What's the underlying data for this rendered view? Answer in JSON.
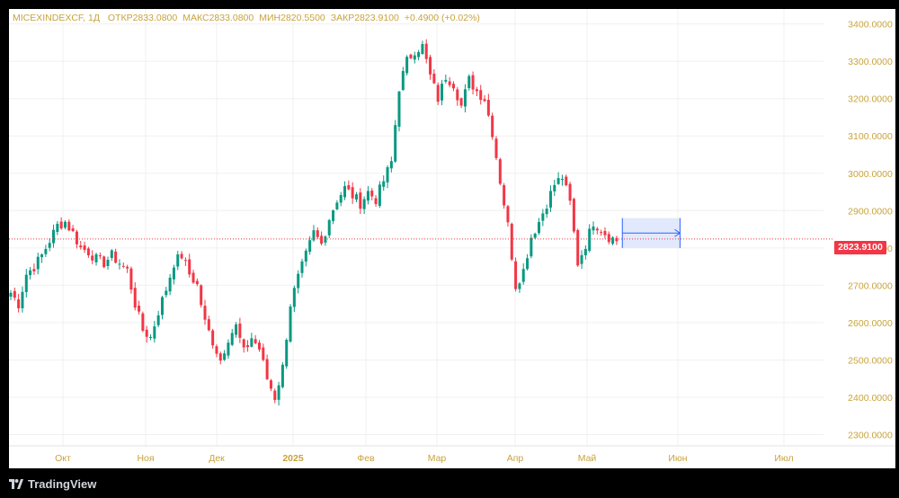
{
  "legend": {
    "symbol": "MICEXINDEXCF, 1Д",
    "open_label": "ОТКР",
    "open": "2833.0800",
    "high_label": "МАКС",
    "high": "2833.0800",
    "low_label": "МИН",
    "low": "2820.5500",
    "close_label": "ЗАКР",
    "close": "2823.9100",
    "change": "+0.4900 (+0.02%)"
  },
  "last_price_badge": "2823.9100",
  "brand": "TradingView",
  "colors": {
    "up": "#089981",
    "down": "#f23645",
    "axis_text": "#c8a33c",
    "grid": "#f0f0f0",
    "measure_fill": "#dbe4fb",
    "measure_stroke": "#2962ff"
  },
  "chart_data": {
    "type": "candlestick",
    "y_ticks": [
      "3400.0000",
      "3300.0000",
      "3200.0000",
      "3100.0000",
      "3000.0000",
      "2900.0000",
      "2800.0000",
      "2700.0000",
      "2600.0000",
      "2500.0000",
      "2400.0000",
      "2300.0000"
    ],
    "x_ticks": [
      "Окт",
      "Ноя",
      "Дек",
      "2025",
      "Фев",
      "Мар",
      "Апр",
      "Май",
      "Июн",
      "Июл"
    ],
    "ylim": [
      2270,
      3440
    ],
    "last_price": 2823.91,
    "grid": true,
    "anchors": [
      [
        0,
        2680
      ],
      [
        2,
        2650
      ],
      [
        4,
        2730
      ],
      [
        6,
        2750
      ],
      [
        8,
        2780
      ],
      [
        10,
        2820
      ],
      [
        12,
        2860
      ],
      [
        14,
        2870
      ],
      [
        16,
        2840
      ],
      [
        18,
        2800
      ],
      [
        20,
        2790
      ],
      [
        22,
        2770
      ],
      [
        24,
        2760
      ],
      [
        26,
        2780
      ],
      [
        28,
        2760
      ],
      [
        30,
        2740
      ],
      [
        32,
        2650
      ],
      [
        34,
        2580
      ],
      [
        36,
        2560
      ],
      [
        38,
        2630
      ],
      [
        40,
        2690
      ],
      [
        42,
        2760
      ],
      [
        44,
        2780
      ],
      [
        46,
        2730
      ],
      [
        48,
        2700
      ],
      [
        50,
        2600
      ],
      [
        52,
        2550
      ],
      [
        54,
        2500
      ],
      [
        56,
        2560
      ],
      [
        58,
        2590
      ],
      [
        60,
        2520
      ],
      [
        62,
        2560
      ],
      [
        64,
        2530
      ],
      [
        66,
        2450
      ],
      [
        68,
        2400
      ],
      [
        70,
        2480
      ],
      [
        72,
        2650
      ],
      [
        74,
        2720
      ],
      [
        76,
        2780
      ],
      [
        78,
        2840
      ],
      [
        80,
        2810
      ],
      [
        82,
        2880
      ],
      [
        84,
        2930
      ],
      [
        86,
        2960
      ],
      [
        88,
        2940
      ],
      [
        90,
        2920
      ],
      [
        92,
        2950
      ],
      [
        94,
        2930
      ],
      [
        96,
        2980
      ],
      [
        98,
        3030
      ],
      [
        100,
        3230
      ],
      [
        102,
        3300
      ],
      [
        104,
        3330
      ],
      [
        106,
        3340
      ],
      [
        108,
        3260
      ],
      [
        110,
        3200
      ],
      [
        112,
        3260
      ],
      [
        114,
        3240
      ],
      [
        116,
        3180
      ],
      [
        118,
        3250
      ],
      [
        120,
        3220
      ],
      [
        122,
        3200
      ],
      [
        124,
        3110
      ],
      [
        126,
        2980
      ],
      [
        128,
        2860
      ],
      [
        130,
        2700
      ],
      [
        132,
        2740
      ],
      [
        134,
        2830
      ],
      [
        136,
        2870
      ],
      [
        138,
        2920
      ],
      [
        140,
        2970
      ],
      [
        142,
        2990
      ],
      [
        144,
        2920
      ],
      [
        146,
        2760
      ],
      [
        148,
        2810
      ],
      [
        150,
        2870
      ],
      [
        152,
        2850
      ],
      [
        154,
        2830
      ],
      [
        156,
        2820
      ]
    ],
    "measure_tool": {
      "from": 157,
      "to": 170,
      "y_top": 2880,
      "y_bottom": 2800
    }
  }
}
